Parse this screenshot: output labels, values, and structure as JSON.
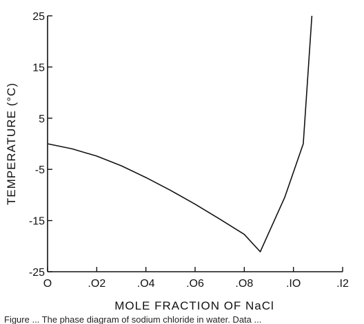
{
  "chart_data": {
    "type": "line",
    "xlabel": "MOLE FRACTION OF NaCl",
    "ylabel": "TEMPERATURE (°C)",
    "xlim": [
      0,
      0.12
    ],
    "ylim": [
      -25,
      25
    ],
    "x_ticks": [
      0,
      0.02,
      0.04,
      0.06,
      0.08,
      0.1,
      0.12
    ],
    "x_tick_labels": [
      "O",
      ".O2",
      ".O4",
      ".O6",
      ".O8",
      ".IO",
      ".I2"
    ],
    "y_ticks": [
      25,
      15,
      5,
      -5,
      -15,
      -25
    ],
    "y_tick_labels": [
      "25",
      "15",
      "5",
      "-5",
      "-15",
      "-25"
    ],
    "grid": false,
    "series": [
      {
        "x": [
          0,
          0.01,
          0.02,
          0.03,
          0.04,
          0.05,
          0.06,
          0.07,
          0.08,
          0.0865,
          0.0965,
          0.104,
          0.1075
        ],
        "y": [
          0,
          -1.0,
          -2.4,
          -4.3,
          -6.6,
          -9.1,
          -11.8,
          -14.7,
          -17.7,
          -21.1,
          -10.4,
          0.0,
          25.0
        ]
      }
    ]
  },
  "caption": "Figure ... The phase diagram of sodium chloride in water. Data ..."
}
